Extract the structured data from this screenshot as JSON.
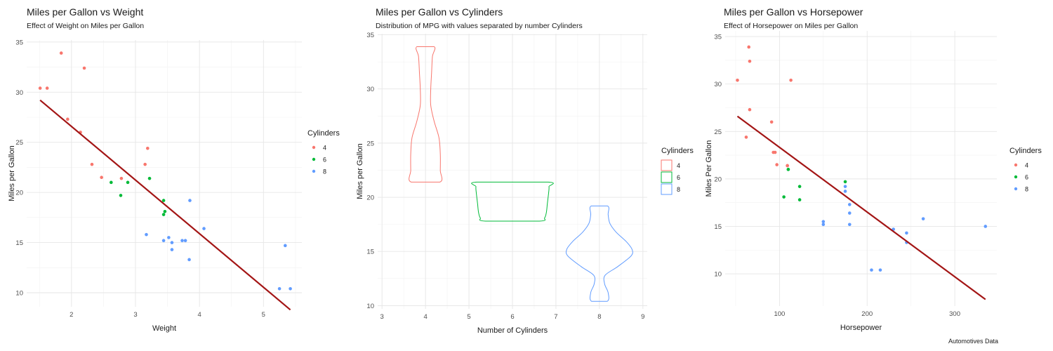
{
  "caption": "Automotives Data",
  "chart_data": [
    {
      "type": "scatter",
      "title": "Miles per Gallon vs Weight",
      "subtitle": "Effect of Weight on Miles per Gallon",
      "xlabel": "Weight",
      "ylabel": "Miles per Gallon",
      "xlim": [
        1.3,
        5.6
      ],
      "ylim": [
        8.6,
        35.2
      ],
      "xticks": [
        2,
        3,
        4,
        5
      ],
      "yticks": [
        10,
        15,
        20,
        25,
        30,
        35
      ],
      "legend": {
        "title": "Cylinders",
        "position": "right",
        "labels": [
          "4",
          "6",
          "8"
        ]
      },
      "colors": {
        "4": "#f8766d",
        "6": "#00ba38",
        "8": "#619cff",
        "fit": "#a31515"
      },
      "fit_line": {
        "x": [
          1.51,
          5.42
        ],
        "y": [
          29.2,
          8.3
        ]
      },
      "series": [
        {
          "name": "4",
          "points": [
            [
              1.51,
              30.4
            ],
            [
              1.62,
              30.4
            ],
            [
              1.84,
              33.9
            ],
            [
              1.94,
              27.3
            ],
            [
              2.14,
              26.0
            ],
            [
              2.2,
              32.4
            ],
            [
              2.32,
              22.8
            ],
            [
              2.47,
              21.5
            ],
            [
              2.78,
              21.4
            ],
            [
              3.15,
              22.8
            ],
            [
              3.19,
              24.4
            ]
          ]
        },
        {
          "name": "6",
          "points": [
            [
              2.62,
              21.0
            ],
            [
              2.77,
              19.7
            ],
            [
              2.88,
              21.0
            ],
            [
              3.22,
              21.4
            ],
            [
              3.44,
              19.2
            ],
            [
              3.44,
              17.8
            ],
            [
              3.46,
              18.1
            ]
          ]
        },
        {
          "name": "8",
          "points": [
            [
              3.17,
              15.8
            ],
            [
              3.44,
              15.2
            ],
            [
              3.52,
              15.5
            ],
            [
              3.57,
              15.0
            ],
            [
              3.57,
              14.3
            ],
            [
              3.73,
              15.2
            ],
            [
              3.78,
              15.2
            ],
            [
              3.84,
              13.3
            ],
            [
              3.85,
              19.2
            ],
            [
              4.07,
              16.4
            ],
            [
              5.25,
              10.4
            ],
            [
              5.34,
              14.7
            ],
            [
              5.42,
              10.4
            ]
          ]
        }
      ]
    },
    {
      "type": "violin",
      "title": "Miles per Gallon vs Cylinders",
      "subtitle": "Distribution of MPG with values separated by number Cylinders",
      "xlabel": "Number of Cylinders",
      "ylabel": "Miles per Gallon",
      "xlim": [
        2.9,
        9.1
      ],
      "ylim": [
        9.7,
        35.1
      ],
      "xticks": [
        3,
        4,
        5,
        6,
        7,
        8,
        9
      ],
      "yticks": [
        10,
        15,
        20,
        25,
        30,
        35
      ],
      "legend": {
        "title": "Cylinders",
        "position": "right",
        "labels": [
          "4",
          "6",
          "8"
        ]
      },
      "colors": {
        "4": "#f8766d",
        "6": "#00ba38",
        "8": "#619cff"
      },
      "series": [
        {
          "name": "4",
          "center": 4,
          "profile": [
            [
              21.4,
              0.33
            ],
            [
              22.5,
              0.34
            ],
            [
              24.0,
              0.34
            ],
            [
              25.5,
              0.31
            ],
            [
              27.0,
              0.2
            ],
            [
              28.5,
              0.12
            ],
            [
              30.0,
              0.12
            ],
            [
              31.5,
              0.14
            ],
            [
              33.0,
              0.16
            ],
            [
              33.9,
              0.2
            ]
          ]
        },
        {
          "name": "6",
          "center": 6,
          "profile": [
            [
              17.8,
              0.62
            ],
            [
              18.1,
              0.74
            ],
            [
              18.6,
              0.78
            ],
            [
              19.3,
              0.8
            ],
            [
              20.0,
              0.82
            ],
            [
              20.7,
              0.84
            ],
            [
              21.0,
              0.84
            ],
            [
              21.4,
              0.82
            ]
          ]
        },
        {
          "name": "8",
          "center": 8,
          "profile": [
            [
              10.4,
              0.18
            ],
            [
              11.2,
              0.2
            ],
            [
              12.0,
              0.12
            ],
            [
              12.8,
              0.13
            ],
            [
              13.6,
              0.42
            ],
            [
              14.6,
              0.73
            ],
            [
              15.2,
              0.75
            ],
            [
              15.9,
              0.62
            ],
            [
              16.8,
              0.38
            ],
            [
              17.6,
              0.24
            ],
            [
              18.4,
              0.2
            ],
            [
              19.2,
              0.19
            ]
          ]
        }
      ]
    },
    {
      "type": "scatter",
      "title": "Miles per Gallon vs Horsepower",
      "subtitle": "Effect of Horsepower on Miles per Gallon",
      "xlabel": "Horsepower",
      "ylabel": "Miles Per Gallon",
      "xlim": [
        38,
        348
      ],
      "ylim": [
        6.6,
        35.6
      ],
      "xticks": [
        100,
        200,
        300
      ],
      "yticks": [
        10,
        15,
        20,
        25,
        30,
        35
      ],
      "legend": {
        "title": "Cylinders",
        "position": "right",
        "labels": [
          "4",
          "6",
          "8"
        ]
      },
      "colors": {
        "4": "#f8766d",
        "6": "#00ba38",
        "8": "#619cff",
        "fit": "#a31515"
      },
      "fit_line": {
        "x": [
          52,
          335
        ],
        "y": [
          26.6,
          7.3
        ]
      },
      "series": [
        {
          "name": "4",
          "points": [
            [
              52,
              30.4
            ],
            [
              62,
              24.4
            ],
            [
              65,
              33.9
            ],
            [
              66,
              32.4
            ],
            [
              66,
              27.3
            ],
            [
              91,
              26.0
            ],
            [
              93,
              22.8
            ],
            [
              95,
              22.8
            ],
            [
              97,
              21.5
            ],
            [
              109,
              21.4
            ],
            [
              109,
              21.4
            ],
            [
              113,
              30.4
            ]
          ]
        },
        {
          "name": "6",
          "points": [
            [
              105,
              18.1
            ],
            [
              110,
              21.0
            ],
            [
              110,
              21.0
            ],
            [
              123,
              19.2
            ],
            [
              123,
              17.8
            ],
            [
              175,
              19.7
            ]
          ]
        },
        {
          "name": "8",
          "points": [
            [
              150,
              15.5
            ],
            [
              150,
              15.2
            ],
            [
              175,
              19.2
            ],
            [
              175,
              18.7
            ],
            [
              180,
              17.3
            ],
            [
              180,
              16.4
            ],
            [
              180,
              15.2
            ],
            [
              205,
              10.4
            ],
            [
              215,
              10.4
            ],
            [
              230,
              14.7
            ],
            [
              245,
              14.3
            ],
            [
              245,
              13.3
            ],
            [
              264,
              15.8
            ],
            [
              335,
              15.0
            ]
          ]
        }
      ]
    }
  ]
}
